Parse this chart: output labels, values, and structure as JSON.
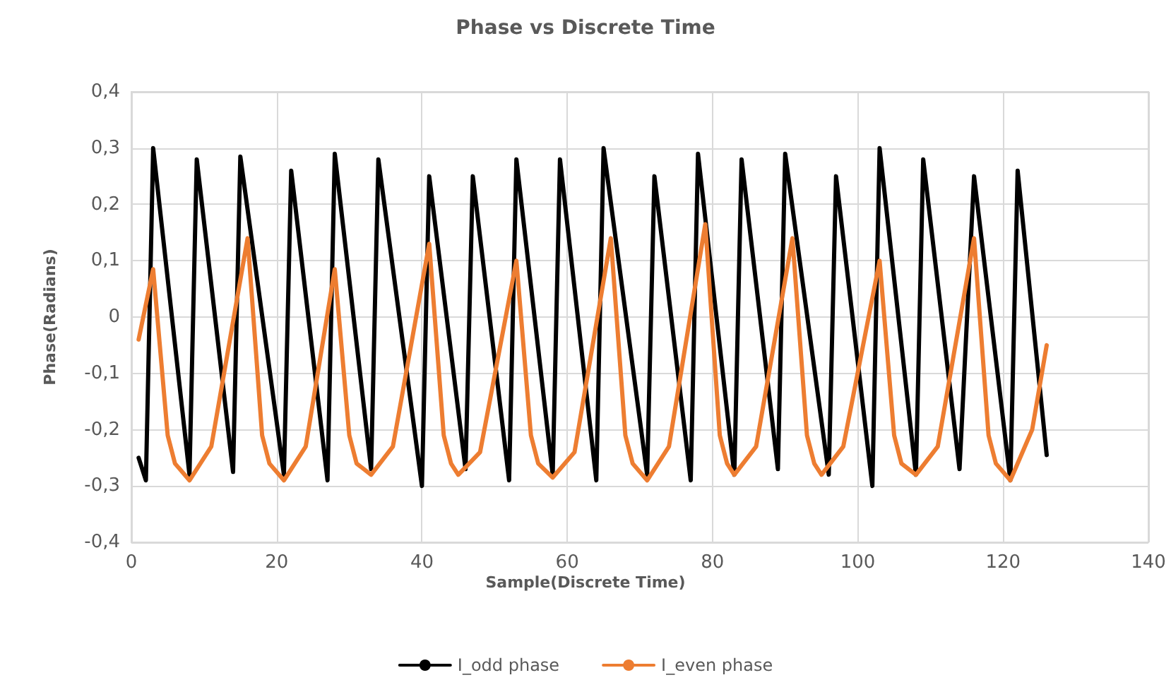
{
  "chart_data": {
    "type": "line",
    "title": "Phase vs Discrete Time",
    "xlabel": "Sample(Discrete Time)",
    "ylabel": "Phase(Radians)",
    "xlim": [
      0,
      140
    ],
    "xticks": [
      0,
      20,
      40,
      60,
      80,
      100,
      120,
      140
    ],
    "ylim": [
      -0.4,
      0.4
    ],
    "yticks": [
      {
        "value": -0.4,
        "label": "-0,4"
      },
      {
        "value": -0.3,
        "label": "-0,3"
      },
      {
        "value": -0.2,
        "label": "-0,2"
      },
      {
        "value": -0.1,
        "label": "-0,1"
      },
      0,
      {
        "value": 0.1,
        "label": "0,1"
      },
      {
        "value": 0.2,
        "label": "0,2"
      },
      {
        "value": 0.3,
        "label": "0,3"
      },
      {
        "value": 0.4,
        "label": "0,4"
      }
    ],
    "grid": true,
    "legend": "bottom",
    "marker": "none",
    "line_style": "solid",
    "series": [
      {
        "name": "I_odd phase",
        "color": "#000000",
        "x": [
          1,
          2,
          3,
          8,
          9,
          14,
          15,
          21,
          22,
          27,
          28,
          33,
          34,
          40,
          41,
          46,
          47,
          52,
          53,
          58,
          59,
          64,
          65,
          71,
          72,
          77,
          78,
          83,
          84,
          89,
          90,
          96,
          97,
          102,
          103,
          108,
          109,
          114,
          116,
          121,
          122,
          126
        ],
        "values": [
          -0.25,
          -0.29,
          0.3,
          -0.28,
          0.28,
          -0.275,
          0.285,
          -0.28,
          0.26,
          -0.29,
          0.29,
          -0.27,
          0.28,
          -0.3,
          0.25,
          -0.27,
          0.25,
          -0.29,
          0.28,
          -0.28,
          0.28,
          -0.29,
          0.3,
          -0.28,
          0.25,
          -0.29,
          0.29,
          -0.28,
          0.28,
          -0.27,
          0.29,
          -0.28,
          0.25,
          -0.3,
          0.3,
          -0.28,
          0.28,
          -0.27,
          0.25,
          -0.29,
          0.26,
          -0.245
        ]
      },
      {
        "name": "I_even phase",
        "color": "#ed7d31",
        "x": [
          1,
          3,
          5,
          6,
          8,
          11,
          16,
          18,
          19,
          21,
          24,
          28,
          30,
          31,
          33,
          36,
          41,
          43,
          44,
          45,
          48,
          53,
          55,
          56,
          58,
          61,
          66,
          68,
          69,
          71,
          74,
          79,
          81,
          82,
          83,
          86,
          91,
          93,
          94,
          95,
          98,
          103,
          105,
          106,
          108,
          111,
          116,
          118,
          119,
          121,
          124,
          126
        ],
        "values": [
          -0.04,
          0.085,
          -0.21,
          -0.26,
          -0.29,
          -0.23,
          0.14,
          -0.21,
          -0.26,
          -0.29,
          -0.23,
          0.085,
          -0.21,
          -0.26,
          -0.28,
          -0.23,
          0.13,
          -0.21,
          -0.26,
          -0.28,
          -0.24,
          0.1,
          -0.21,
          -0.26,
          -0.285,
          -0.24,
          0.14,
          -0.21,
          -0.26,
          -0.29,
          -0.23,
          0.165,
          -0.21,
          -0.26,
          -0.28,
          -0.23,
          0.14,
          -0.21,
          -0.26,
          -0.28,
          -0.23,
          0.1,
          -0.21,
          -0.26,
          -0.28,
          -0.23,
          0.14,
          -0.21,
          -0.26,
          -0.29,
          -0.2,
          -0.05
        ]
      }
    ]
  }
}
